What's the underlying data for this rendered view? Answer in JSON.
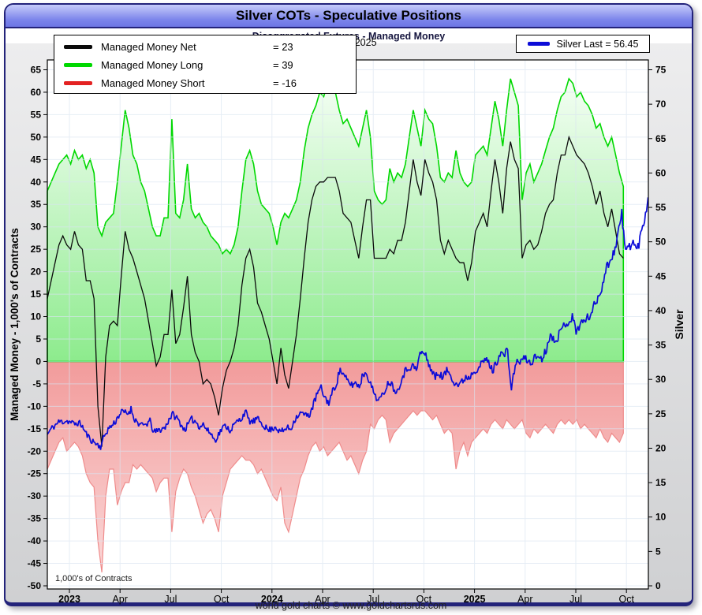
{
  "window": {
    "footer": "world gold charts © www.goldchartsrus.com",
    "plot_note": "1,000's of Contracts"
  },
  "legend": {
    "net": {
      "eq": "= 23"
    },
    "long": {
      "eq": "= 39"
    },
    "short": {
      "eq": "= -16"
    },
    "silver_label": "Silver Last = 56.45"
  },
  "chart_data": {
    "type": "area",
    "title": "Silver COTs - Speculative Positions",
    "subtitle": "Disaggregated Futures - Managed Money",
    "date_label": "Nov-28  2025",
    "left_axis": {
      "label": "Managed Money - 1,000's of Contracts",
      "min": -50,
      "max": 65,
      "step": 5
    },
    "right_axis": {
      "label": "Silver",
      "min": 0,
      "max": 75,
      "step": 5
    },
    "x_axis": {
      "start": "Dec 2022",
      "ticks": [
        {
          "m": 1,
          "label": "2023",
          "bold": true
        },
        {
          "m": 4,
          "label": "Apr"
        },
        {
          "m": 7,
          "label": "Jul"
        },
        {
          "m": 10,
          "label": "Oct"
        },
        {
          "m": 13,
          "label": "2024",
          "bold": true
        },
        {
          "m": 16,
          "label": "Apr"
        },
        {
          "m": 19,
          "label": "Jul"
        },
        {
          "m": 22,
          "label": "Oct"
        },
        {
          "m": 25,
          "label": "2025",
          "bold": true
        },
        {
          "m": 28,
          "label": "Apr"
        },
        {
          "m": 31,
          "label": "Jul"
        },
        {
          "m": 34,
          "label": "Oct"
        }
      ]
    },
    "grid": {
      "on": true,
      "color": "#d9e4f1"
    },
    "legend_position": "top-left",
    "series": {
      "long": {
        "name": "Managed Money Long",
        "last": 39,
        "axis": "left",
        "color": "#00d800",
        "fill_top": "#f8fff8",
        "fill_bottom": "#8deb8d",
        "m_start": -0.31,
        "m_end": 33.82,
        "interval": "weekly",
        "weekly": [
          38,
          40,
          42,
          44,
          45,
          46,
          44,
          47,
          45,
          46,
          43,
          45,
          42,
          30,
          28,
          31,
          32,
          33,
          40,
          48,
          56,
          52,
          46,
          44,
          40,
          38,
          34,
          30,
          28,
          28,
          32,
          32,
          54,
          33,
          32,
          36,
          44,
          34,
          32,
          33,
          31,
          30,
          28,
          27,
          26,
          24,
          25,
          24,
          26,
          30,
          38,
          45,
          47,
          44,
          38,
          35,
          34,
          33,
          30,
          26,
          31,
          33,
          32,
          34,
          36,
          40,
          47,
          52,
          55,
          57,
          60,
          59,
          62,
          61,
          60,
          56,
          53,
          54,
          52,
          50,
          48,
          52,
          56,
          50,
          38,
          36,
          35,
          36,
          43,
          40,
          42,
          41,
          44,
          50,
          56,
          52,
          48,
          56,
          54,
          53,
          48,
          41,
          40,
          42,
          41,
          47,
          42,
          40,
          39,
          40,
          46,
          47,
          48,
          46,
          52,
          58,
          54,
          48,
          56,
          63,
          60,
          57,
          36,
          42,
          44,
          40,
          42,
          44,
          47,
          50,
          52,
          56,
          59,
          60,
          63,
          62,
          59,
          60,
          58,
          57,
          55,
          52,
          53,
          50,
          48,
          50,
          46,
          42,
          39
        ]
      },
      "short": {
        "name": "Managed Money Short",
        "last": -16,
        "axis": "left",
        "legend_color": "#e32222",
        "color": "#ef8b8b",
        "fill_top": "#f29b9b",
        "fill_bottom": "#fbdcdc",
        "m_start": -0.31,
        "m_end": 33.82,
        "interval": "weekly",
        "weekly": [
          -24,
          -22,
          -20,
          -18,
          -17,
          -20,
          -19,
          -18,
          -19,
          -21,
          -25,
          -27,
          -28,
          -40,
          -47,
          -30,
          -24,
          -24,
          -32,
          -29,
          -27,
          -27,
          -23,
          -24,
          -23,
          -24,
          -25,
          -26,
          -29,
          -27,
          -26,
          -26,
          -38,
          -29,
          -26,
          -24,
          -25,
          -28,
          -30,
          -33,
          -36,
          -34,
          -33,
          -35,
          -38,
          -30,
          -27,
          -24,
          -23,
          -22,
          -21,
          -22,
          -22,
          -23,
          -25,
          -24,
          -26,
          -28,
          -30,
          -31,
          -28,
          -36,
          -38,
          -34,
          -30,
          -26,
          -24,
          -21,
          -19,
          -18,
          -20,
          -19,
          -21,
          -20,
          -19,
          -18,
          -20,
          -22,
          -21,
          -23,
          -25,
          -22,
          -20,
          -14,
          -15,
          -13,
          -12,
          -13,
          -18,
          -16,
          -15,
          -14,
          -13,
          -12,
          -11,
          -12,
          -11,
          -11,
          -12,
          -13,
          -12,
          -14,
          -16,
          -15,
          -16,
          -24,
          -20,
          -18,
          -21,
          -18,
          -17,
          -16,
          -15,
          -16,
          -14,
          -13,
          -14,
          -15,
          -13,
          -14,
          -15,
          -14,
          -13,
          -16,
          -17,
          -15,
          -16,
          -15,
          -14,
          -15,
          -16,
          -14,
          -13,
          -14,
          -13,
          -14,
          -13,
          -15,
          -14,
          -15,
          -16,
          -17,
          -15,
          -17,
          -18,
          -16,
          -17,
          -18,
          -16
        ]
      },
      "net": {
        "name": "Managed Money Net",
        "last": 23,
        "axis": "left",
        "color": "#0a0a0a",
        "formula": "long+short"
      },
      "silver": {
        "name": "Silver Last",
        "last": 56.45,
        "axis": "right",
        "color": "#0c0cd8",
        "m_start": -0.31,
        "m_end": 35.3,
        "interval": "weekly",
        "daily_subdiv": 4,
        "noise_base": 0.25,
        "noise_scale": 0.012,
        "seed": 11,
        "weekly": [
          22.0,
          22.8,
          23.3,
          23.8,
          23.9,
          24.0,
          23.8,
          23.5,
          23.7,
          23.4,
          22.3,
          21.5,
          21.0,
          20.6,
          20.2,
          21.8,
          22.8,
          23.3,
          24.0,
          25.0,
          25.3,
          25.0,
          25.7,
          24.2,
          23.6,
          23.2,
          23.5,
          23.9,
          22.3,
          22.5,
          22.8,
          23.0,
          24.3,
          24.9,
          24.4,
          23.6,
          22.7,
          23.4,
          24.2,
          23.9,
          23.2,
          23.5,
          22.6,
          22.2,
          21.1,
          22.0,
          22.9,
          23.3,
          22.6,
          23.3,
          23.9,
          24.3,
          25.4,
          24.0,
          23.8,
          24.2,
          23.9,
          23.3,
          22.6,
          22.8,
          23.2,
          22.4,
          22.5,
          23.0,
          22.8,
          24.2,
          24.9,
          25.1,
          24.7,
          25.0,
          26.4,
          28.0,
          28.7,
          27.3,
          26.6,
          28.2,
          29.5,
          31.5,
          30.4,
          29.7,
          29.2,
          29.5,
          29.0,
          30.8,
          31.0,
          29.2,
          28.0,
          26.9,
          27.5,
          28.9,
          29.8,
          28.8,
          28.2,
          30.0,
          31.1,
          31.8,
          32.0,
          31.3,
          33.8,
          33.9,
          32.7,
          31.3,
          30.3,
          31.0,
          30.2,
          31.3,
          30.8,
          29.6,
          29.2,
          29.6,
          30.4,
          30.3,
          31.3,
          31.6,
          32.1,
          32.9,
          32.5,
          31.2,
          32.4,
          33.9,
          33.5,
          34.1,
          28.4,
          32.3,
          32.5,
          33.0,
          32.9,
          32.3,
          33.1,
          33.4,
          33.0,
          34.1,
          36.3,
          36.0,
          36.1,
          36.9,
          38.2,
          38.3,
          39.1,
          37.0,
          38.0,
          38.5,
          38.9,
          39.7,
          41.0,
          42.2,
          44.0,
          46.2,
          47.5,
          48.5,
          51.2,
          54.0,
          48.5,
          49.5,
          50.0,
          48.7,
          51.0,
          53.5,
          56.45
        ]
      }
    }
  }
}
